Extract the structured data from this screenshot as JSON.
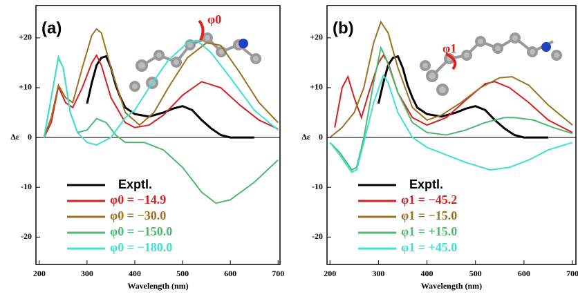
{
  "chart_data": [
    {
      "type": "line",
      "panel_label": "(a)",
      "annotation": "φ0",
      "xlabel": "Wavelength (nm)",
      "ylabel": "Δε",
      "xlim": [
        193,
        704
      ],
      "xticks": [
        200,
        300,
        400,
        500,
        600,
        700
      ],
      "ylim": [
        -25.5,
        26.5
      ],
      "yticks": [
        {
          "value": 20,
          "label": "+20"
        },
        {
          "value": 10,
          "label": "+10"
        },
        0,
        -10,
        -20
      ],
      "legend": "lower left",
      "series": [
        {
          "name": "Exptl.",
          "color": "#000000",
          "x": [
            300,
            310,
            320,
            330,
            340,
            350,
            360,
            370,
            380,
            400,
            430,
            460,
            480,
            500,
            520,
            540,
            560,
            580,
            600,
            650
          ],
          "values": [
            6.8,
            11,
            14.5,
            16,
            16.3,
            14,
            10.5,
            8,
            6,
            4.7,
            4.2,
            5,
            5.8,
            6.3,
            5.5,
            3.5,
            1.8,
            0.5,
            0,
            0
          ]
        },
        {
          "name": "φ0 =   −14.9",
          "color": "#d42020",
          "x": [
            210,
            225,
            240,
            255,
            270,
            290,
            310,
            320,
            330,
            350,
            380,
            400,
            430,
            460,
            500,
            540,
            580,
            620,
            660,
            700
          ],
          "values": [
            0,
            3,
            10.2,
            7,
            6,
            10,
            15,
            16.5,
            14.5,
            8,
            3,
            2,
            2.5,
            4.5,
            8.5,
            11.2,
            10,
            6.5,
            3.5,
            1.7
          ]
        },
        {
          "name": "φ0 =   −30.0",
          "color": "#9c7020",
          "x": [
            210,
            225,
            240,
            255,
            270,
            290,
            310,
            320,
            330,
            350,
            380,
            410,
            440,
            470,
            510,
            550,
            580,
            620,
            660,
            700
          ],
          "values": [
            0,
            4,
            10.5,
            8,
            7,
            14,
            20.5,
            21.8,
            21,
            14,
            5,
            2.5,
            5,
            10,
            16,
            19,
            18.5,
            13,
            7,
            3
          ]
        },
        {
          "name": "φ0 = −150.0",
          "color": "#4cb870",
          "x": [
            210,
            225,
            240,
            250,
            265,
            280,
            300,
            320,
            340,
            360,
            380,
            420,
            460,
            500,
            540,
            570,
            600,
            650,
            700
          ],
          "values": [
            0,
            8,
            16,
            14,
            5,
            1,
            1.5,
            3.8,
            3,
            0.5,
            -1,
            -1,
            -2.5,
            -6,
            -11,
            -13.2,
            -12.5,
            -9,
            -4.5
          ]
        },
        {
          "name": "φ0 = −180.0",
          "color": "#40e0d0",
          "x": [
            210,
            225,
            240,
            250,
            265,
            280,
            300,
            320,
            350,
            380,
            400,
            430,
            470,
            510,
            530,
            560,
            600,
            650,
            700
          ],
          "values": [
            0,
            8,
            16.2,
            14,
            5,
            1,
            -1,
            -1.5,
            0,
            4,
            5.5,
            10,
            15.5,
            19,
            19.5,
            17,
            12,
            5.5,
            1.5
          ]
        }
      ]
    },
    {
      "type": "line",
      "panel_label": "(b)",
      "annotation": "φ1",
      "xlabel": "Wavelength (nm)",
      "ylabel": "Δε",
      "xlim": [
        194,
        707
      ],
      "xticks": [
        200,
        300,
        400,
        500,
        600,
        700
      ],
      "ylim": [
        -25.5,
        26.5
      ],
      "yticks": [
        {
          "value": 20,
          "label": "+20"
        },
        {
          "value": 10,
          "label": "+10"
        },
        0,
        -10,
        -20
      ],
      "legend": "lower left",
      "series": [
        {
          "name": "Exptl.",
          "color": "#000000",
          "x": [
            300,
            310,
            320,
            330,
            340,
            350,
            360,
            370,
            380,
            400,
            430,
            460,
            480,
            500,
            520,
            540,
            560,
            580,
            600,
            650
          ],
          "values": [
            6.8,
            11,
            14.5,
            16,
            16.3,
            14,
            10.5,
            8,
            6,
            4.7,
            4.2,
            5,
            5.8,
            6.3,
            5.5,
            3.5,
            1.8,
            0.5,
            0,
            0
          ]
        },
        {
          "name": "φ1 = −45.2",
          "color": "#d42020",
          "x": [
            210,
            225,
            237,
            250,
            265,
            280,
            300,
            310,
            320,
            340,
            370,
            400,
            440,
            480,
            520,
            540,
            570,
            610,
            650,
            700
          ],
          "values": [
            2,
            10,
            12.2,
            8,
            4,
            9,
            15,
            16.5,
            15,
            9,
            4,
            2.5,
            4,
            7.5,
            10.8,
            11.2,
            10,
            7,
            3.5,
            1
          ]
        },
        {
          "name": "φ1 = −15.0",
          "color": "#9c7020",
          "x": [
            200,
            225,
            250,
            270,
            290,
            305,
            320,
            340,
            370,
            400,
            430,
            470,
            510,
            550,
            575,
            610,
            650,
            700
          ],
          "values": [
            0,
            2,
            5,
            10,
            19,
            23.2,
            21,
            14,
            6,
            3.5,
            4.5,
            7,
            10,
            12,
            12.2,
            10.5,
            6.5,
            2.5
          ]
        },
        {
          "name": "φ1 = +15.0",
          "color": "#4cb870",
          "x": [
            200,
            220,
            245,
            255,
            270,
            290,
            305,
            315,
            340,
            370,
            400,
            440,
            480,
            520,
            560,
            580,
            620,
            660,
            700
          ],
          "values": [
            -1,
            -3,
            -6.5,
            -6,
            0,
            11,
            18,
            16,
            9,
            3,
            1,
            0.5,
            1.5,
            3,
            4,
            4,
            3.5,
            2,
            0.8
          ]
        },
        {
          "name": "φ1 = +45.0",
          "color": "#40e0d0",
          "x": [
            200,
            220,
            245,
            255,
            270,
            290,
            310,
            320,
            340,
            370,
            400,
            440,
            480,
            530,
            570,
            610,
            650,
            700
          ],
          "values": [
            -1,
            -3.5,
            -7,
            -6.5,
            -1,
            7,
            12.5,
            11,
            5,
            0,
            -2,
            -3.5,
            -5,
            -6.5,
            -6,
            -4.5,
            -2.5,
            -1
          ]
        }
      ]
    }
  ]
}
